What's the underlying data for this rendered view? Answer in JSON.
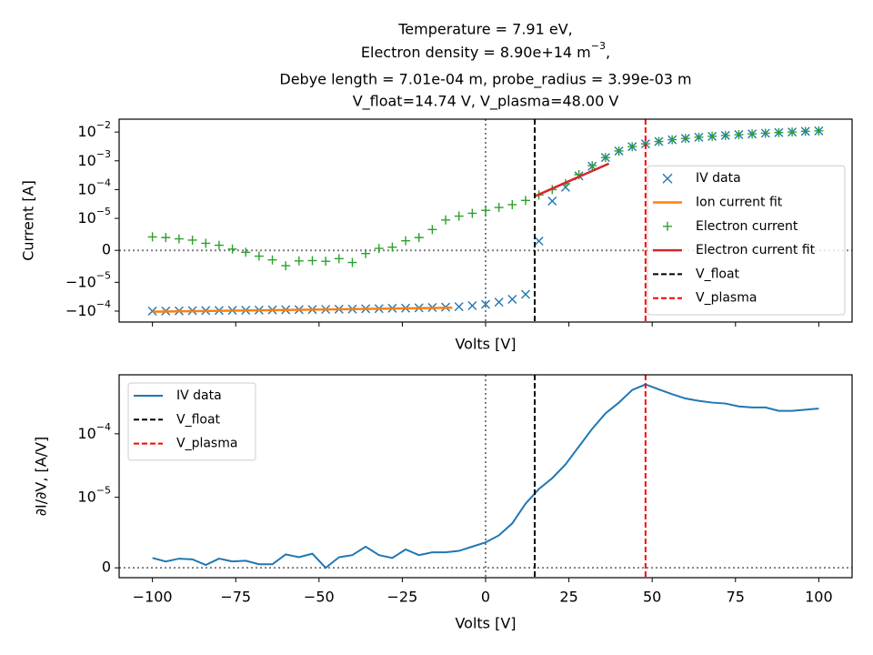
{
  "chart_data": [
    {
      "type": "line",
      "yscale": "symlog",
      "linthresh": 1e-05,
      "title": [
        "Temperature = 7.91 eV,",
        {
          "text": "Electron density = 8.90e+14 m",
          "sup": "−3",
          "tail": ","
        },
        "Debye length = 7.01e-04 m, probe_radius = 3.99e-03 m",
        "V_float=14.74 V, V_plasma=48.00 V"
      ],
      "xlabel": "Volts [V]",
      "ylabel": "Current [A]",
      "show_xtick_labels": false,
      "xlim": [
        -110,
        110
      ],
      "ylim": [
        -0.00024,
        0.028
      ],
      "xticks": [
        -100,
        -75,
        -50,
        -25,
        0,
        25,
        50,
        75,
        100
      ],
      "yticks": [
        {
          "value": -0.0001,
          "label": "−10−4"
        },
        {
          "value": -1e-05,
          "label": "−10−5"
        },
        0,
        {
          "value": 1e-05,
          "label": "10−5"
        },
        {
          "value": 0.0001,
          "label": "10−4"
        },
        {
          "value": 0.001,
          "label": "10−3"
        },
        {
          "value": 0.01,
          "label": "10−2"
        }
      ],
      "zero_lines": true,
      "legend": "lower right",
      "series": [
        {
          "name": "IV data",
          "color": "#1f77b4",
          "marker": "x",
          "x": [
            -100,
            -96,
            -92,
            -88,
            -84,
            -80,
            -76,
            -72,
            -68,
            -64,
            -60,
            -56,
            -52,
            -48,
            -44,
            -40,
            -36,
            -32,
            -28,
            -24,
            -20,
            -16,
            -12,
            -8,
            -4,
            0,
            4,
            8,
            12,
            16,
            20,
            24,
            28,
            32,
            36,
            40,
            44,
            48,
            52,
            56,
            60,
            64,
            68,
            72,
            76,
            80,
            84,
            88,
            92,
            96,
            100
          ],
          "values": [
            -0.0001,
            -9.9e-05,
            -9.8e-05,
            -9.7e-05,
            -9.6e-05,
            -9.5e-05,
            -9.4e-05,
            -9.3e-05,
            -9.2e-05,
            -9.1e-05,
            -9e-05,
            -8.9e-05,
            -8.8e-05,
            -8.7e-05,
            -8.6e-05,
            -8.5e-05,
            -8.3e-05,
            -8.2e-05,
            -8e-05,
            -7.9e-05,
            -7.7e-05,
            -7.5e-05,
            -7.3e-05,
            -7e-05,
            -6.5e-05,
            -5.8e-05,
            -4.9e-05,
            -3.9e-05,
            -2.6e-05,
            2.9e-06,
            4e-05,
            0.00012,
            0.0003,
            0.00065,
            0.0013,
            0.0022,
            0.0031,
            0.0039,
            0.0047,
            0.0054,
            0.006,
            0.0066,
            0.0071,
            0.0076,
            0.0081,
            0.0086,
            0.0091,
            0.0096,
            0.01,
            0.0106,
            0.011
          ]
        },
        {
          "name": "Ion current fit",
          "color": "#ff7f0e",
          "linewidth": 2.5,
          "x": [
            -100,
            -55,
            -10
          ],
          "values": [
            -0.000105,
            -9e-05,
            -7.6e-05
          ]
        },
        {
          "name": "Electron current",
          "color": "#2ca02c",
          "marker": "+",
          "x": [
            -100,
            -96,
            -92,
            -88,
            -84,
            -80,
            -76,
            -72,
            -68,
            -64,
            -60,
            -56,
            -52,
            -48,
            -44,
            -40,
            -36,
            -32,
            -28,
            -24,
            -20,
            -16,
            -12,
            -8,
            -4,
            0,
            4,
            8,
            12,
            16,
            20,
            24,
            28,
            32,
            36,
            40,
            44,
            48,
            52,
            56,
            60,
            64,
            68,
            72,
            76,
            80,
            84,
            88,
            92,
            96,
            100
          ],
          "values": [
            4.2e-06,
            4e-06,
            3.6e-06,
            3.2e-06,
            2.2e-06,
            1.6e-06,
            4e-07,
            -6e-07,
            -1.8e-06,
            -3e-06,
            -4.8e-06,
            -3.3e-06,
            -3.2e-06,
            -3.4e-06,
            -2.6e-06,
            -3.8e-06,
            -1e-06,
            6e-07,
            1e-06,
            3e-06,
            4e-06,
            6.5e-06,
            9.5e-06,
            1.2e-05,
            1.5e-05,
            1.9e-05,
            2.4e-05,
            3e-05,
            4.2e-05,
            6.5e-05,
            0.0001,
            0.00016,
            0.00033,
            0.00068,
            0.0013,
            0.0022,
            0.0031,
            0.0039,
            0.0047,
            0.0054,
            0.006,
            0.0066,
            0.0071,
            0.0076,
            0.0081,
            0.0086,
            0.0091,
            0.0096,
            0.01,
            0.0106,
            0.011
          ]
        },
        {
          "name": "Electron current fit",
          "color": "#d62728",
          "linewidth": 2.5,
          "x": [
            15,
            26,
            37
          ],
          "values": [
            6e-05,
            0.00022,
            0.0008
          ]
        }
      ],
      "vlines": [
        {
          "name": "V_float",
          "x": 14.74,
          "color": "#000000"
        },
        {
          "name": "V_plasma",
          "x": 48.0,
          "color": "#ff0000"
        }
      ]
    },
    {
      "type": "line",
      "yscale": "symlog",
      "linthresh": 1e-05,
      "xlabel": "Volts [V]",
      "ylabel": "∂I/∂V, [A/V]",
      "show_xtick_labels": true,
      "xlim": [
        -110,
        110
      ],
      "ylim": [
        -1.4e-06,
        0.00085
      ],
      "xticks": [
        {
          "value": -100,
          "label": "−100"
        },
        {
          "value": -75,
          "label": "−75"
        },
        {
          "value": -50,
          "label": "−50"
        },
        {
          "value": -25,
          "label": "−25"
        },
        0,
        25,
        50,
        75,
        100
      ],
      "yticks": [
        0,
        {
          "value": 1e-05,
          "label": "10−5"
        },
        {
          "value": 0.0001,
          "label": "10−4"
        }
      ],
      "zero_lines": true,
      "legend": "upper left",
      "series": [
        {
          "name": "IV data",
          "color": "#1f77b4",
          "linewidth": 2,
          "x": [
            -100,
            -96,
            -92,
            -88,
            -84,
            -80,
            -76,
            -72,
            -68,
            -64,
            -60,
            -56,
            -52,
            -48,
            -44,
            -40,
            -36,
            -32,
            -28,
            -24,
            -20,
            -16,
            -12,
            -8,
            -4,
            0,
            4,
            8,
            12,
            16,
            20,
            24,
            28,
            32,
            36,
            40,
            44,
            48,
            52,
            56,
            60,
            64,
            68,
            72,
            76,
            80,
            84,
            88,
            92,
            96,
            100
          ],
          "values": [
            1.4e-06,
            9e-07,
            1.3e-06,
            1.2e-06,
            4e-07,
            1.3e-06,
            9e-07,
            1e-06,
            5e-07,
            5e-07,
            1.9e-06,
            1.5e-06,
            2e-06,
            0,
            1.5e-06,
            1.8e-06,
            3e-06,
            1.8e-06,
            1.4e-06,
            2.6e-06,
            1.8e-06,
            2.2e-06,
            2.2e-06,
            2.4e-06,
            3e-06,
            3.6e-06,
            4.6e-06,
            6.3e-06,
            9.1e-06,
            1.35e-05,
            2e-05,
            3.3e-05,
            6.3e-05,
            0.00012,
            0.00021,
            0.00031,
            0.00049,
            0.0006,
            0.0005,
            0.00042,
            0.00036,
            0.00033,
            0.00031,
            0.0003,
            0.00027,
            0.00026,
            0.00026,
            0.00023,
            0.00023,
            0.00024,
            0.00025
          ]
        }
      ],
      "vlines": [
        {
          "name": "V_float",
          "x": 14.74,
          "color": "#000000"
        },
        {
          "name": "V_plasma",
          "x": 48.0,
          "color": "#ff0000"
        }
      ]
    }
  ]
}
